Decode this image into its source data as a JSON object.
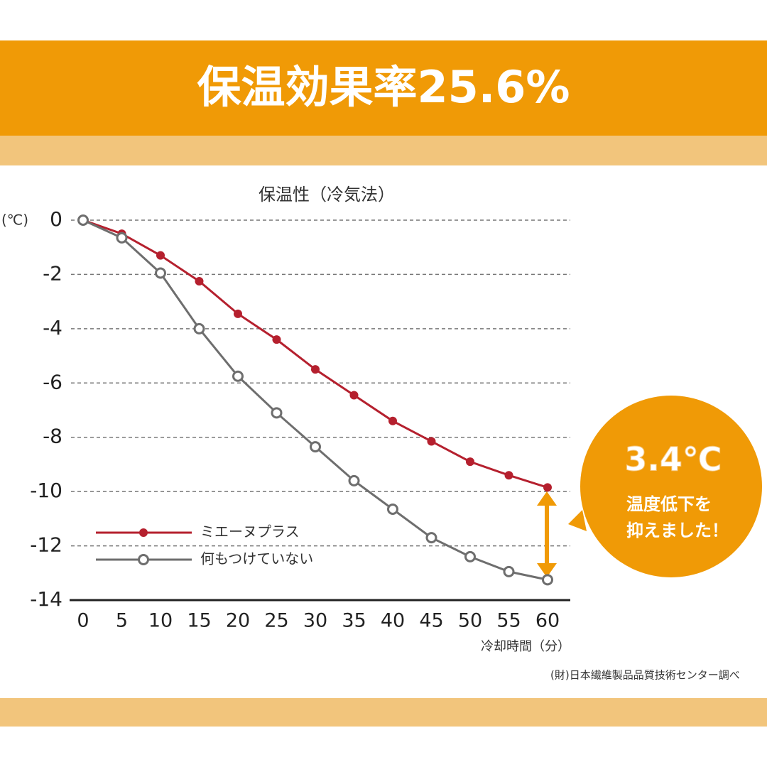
{
  "banner_title": "保温効果率25.6%",
  "chart_data": {
    "type": "line",
    "title": "保温性（冷気法）",
    "y_unit": "(℃)",
    "x_label": "冷却時間（分）",
    "source": "(財)日本繊維製品品質技術センター調べ",
    "x": [
      0,
      5,
      10,
      15,
      20,
      25,
      30,
      35,
      40,
      45,
      50,
      55,
      60
    ],
    "series": [
      {
        "name": "ミエーヌプラス",
        "color": "#b5202e",
        "marker": "filled",
        "values": [
          0,
          -0.5,
          -1.3,
          -2.25,
          -3.45,
          -4.4,
          -5.5,
          -6.45,
          -7.4,
          -8.15,
          -8.9,
          -9.4,
          -9.85
        ]
      },
      {
        "name": "何もつけていない",
        "color": "#6e6e6e",
        "marker": "open",
        "values": [
          0,
          -0.65,
          -1.95,
          -4.0,
          -5.75,
          -7.1,
          -8.35,
          -9.6,
          -10.65,
          -11.7,
          -12.4,
          -12.95,
          -13.25
        ]
      }
    ],
    "xlim": [
      0,
      60
    ],
    "xticks": [
      0,
      5,
      10,
      15,
      20,
      25,
      30,
      35,
      40,
      45,
      50,
      55,
      60
    ],
    "ylim": [
      -14,
      0
    ],
    "yticks": [
      0,
      -2,
      -4,
      -6,
      -8,
      -10,
      -12,
      -14
    ],
    "grid": true,
    "annotation": {
      "value_text": "3.4℃",
      "message_line1": "温度低下を",
      "message_line2": "抑えました！"
    }
  }
}
